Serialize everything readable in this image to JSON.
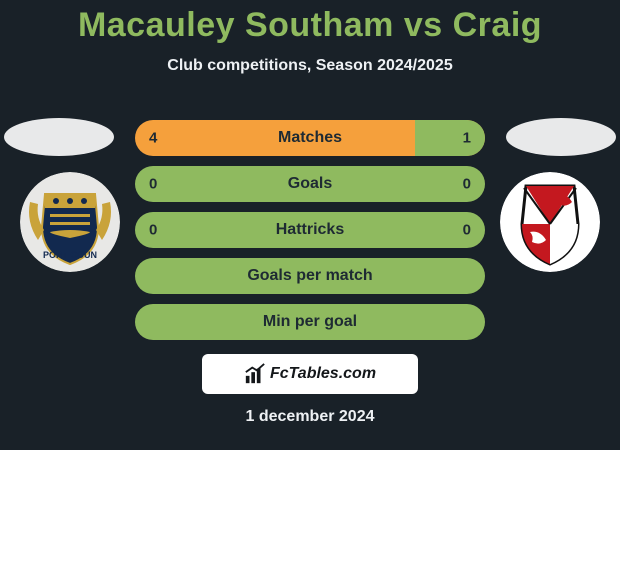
{
  "colors": {
    "page_bg": "#192128",
    "title": "#8fba5f",
    "subtitle": "#eef1f4",
    "ellipse": "#e8e9ea",
    "bar_bg": "#f5a03c",
    "bar_bg_full": "#8fba5f",
    "bar_right_fill": "#8fba5f",
    "bar_text": "#1e2a33",
    "brand_bg": "#ffffff",
    "brand_text": "#14171a",
    "date": "#eef1f4",
    "crest_left_bg": "#e8e8e6",
    "crest_right_bg": "#ffffff"
  },
  "title": "Macauley Southam vs Craig",
  "subtitle": "Club competitions, Season 2024/2025",
  "rows": [
    {
      "label": "Matches",
      "left": "4",
      "right": "1",
      "left_pct": 80,
      "right_pct": 20,
      "show_vals": true
    },
    {
      "label": "Goals",
      "left": "0",
      "right": "0",
      "left_pct": 100,
      "right_pct": 0,
      "show_vals": true,
      "full_green": true
    },
    {
      "label": "Hattricks",
      "left": "0",
      "right": "0",
      "left_pct": 100,
      "right_pct": 0,
      "show_vals": true,
      "full_green": true
    },
    {
      "label": "Goals per match",
      "left": "",
      "right": "",
      "left_pct": 100,
      "right_pct": 0,
      "show_vals": false,
      "full_green": true
    },
    {
      "label": "Min per goal",
      "left": "",
      "right": "",
      "left_pct": 100,
      "right_pct": 0,
      "show_vals": false,
      "full_green": true
    }
  ],
  "brand": "FcTables.com",
  "date": "1 december 2024"
}
